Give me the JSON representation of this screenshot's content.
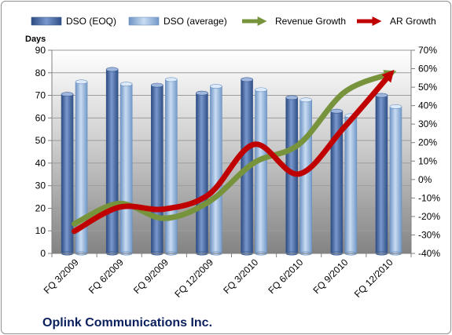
{
  "chart_data": {
    "type": "bar",
    "title": "Oplink Communications Inc.",
    "ylabel": "Days",
    "categories": [
      "FQ 3/2009",
      "FQ 6/2009",
      "FQ 9/2009",
      "FQ 12/2009",
      "FQ 3/2010",
      "FQ 6/2010",
      "FQ 9/2010",
      "FQ 12/2010"
    ],
    "ylim": [
      0,
      90
    ],
    "yticks": [
      "0",
      "10",
      "20",
      "30",
      "40",
      "50",
      "60",
      "70",
      "80",
      "90"
    ],
    "y2lim": [
      -40,
      70
    ],
    "y2ticks": [
      "-40%",
      "-30%",
      "-20%",
      "-10%",
      "0%",
      "10%",
      "20%",
      "30%",
      "40%",
      "50%",
      "60%",
      "70%"
    ],
    "grid": true,
    "legend_position": "top",
    "series": [
      {
        "name": "DSO (EOQ)",
        "type": "bar",
        "axis": "left",
        "color": "#4f6fa8",
        "values": [
          70.5,
          81.5,
          74.5,
          71,
          77,
          69,
          63,
          70
        ]
      },
      {
        "name": "DSO (average)",
        "type": "bar",
        "axis": "left",
        "color": "#8fb3dc",
        "values": [
          76,
          75,
          77,
          74,
          72.5,
          68,
          61,
          65
        ]
      },
      {
        "name": "Revenue Growth",
        "type": "line",
        "axis": "right",
        "color": "#77933c",
        "values": [
          -24,
          -13,
          -21,
          -12,
          9,
          19,
          47,
          57
        ]
      },
      {
        "name": "AR Growth",
        "type": "line",
        "axis": "right",
        "color": "#c00000",
        "values": [
          -28,
          -15,
          -16,
          -8,
          19,
          3,
          28,
          56
        ]
      }
    ]
  }
}
